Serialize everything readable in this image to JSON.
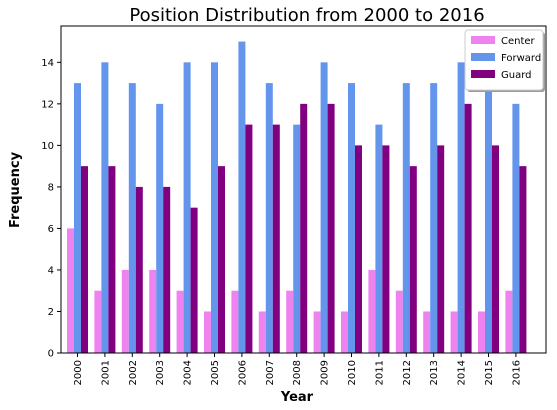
{
  "chart_data": {
    "type": "bar",
    "title": "Position Distribution from 2000 to 2016",
    "xlabel": "Year",
    "ylabel": "Frequency",
    "categories": [
      "2000",
      "2001",
      "2002",
      "2003",
      "2004",
      "2005",
      "2006",
      "2007",
      "2008",
      "2009",
      "2010",
      "2011",
      "2012",
      "2013",
      "2014",
      "2015",
      "2016"
    ],
    "series": [
      {
        "name": "Center",
        "color": "#ee82ee",
        "values": [
          6,
          3,
          4,
          4,
          3,
          2,
          3,
          2,
          3,
          2,
          2,
          4,
          3,
          2,
          2,
          2,
          3
        ]
      },
      {
        "name": "Forward",
        "color": "#6495ed",
        "values": [
          13,
          14,
          13,
          12,
          14,
          14,
          15,
          13,
          11,
          14,
          13,
          11,
          13,
          13,
          14,
          13,
          12
        ]
      },
      {
        "name": "Guard",
        "color": "#800080",
        "values": [
          9,
          9,
          8,
          8,
          7,
          9,
          11,
          11,
          12,
          12,
          10,
          10,
          9,
          10,
          12,
          10,
          9
        ]
      }
    ],
    "ylim": [
      0,
      15.75
    ],
    "yticks": [
      0,
      2,
      4,
      6,
      8,
      10,
      12,
      14
    ],
    "legend_position": "top-right",
    "grid": false
  }
}
